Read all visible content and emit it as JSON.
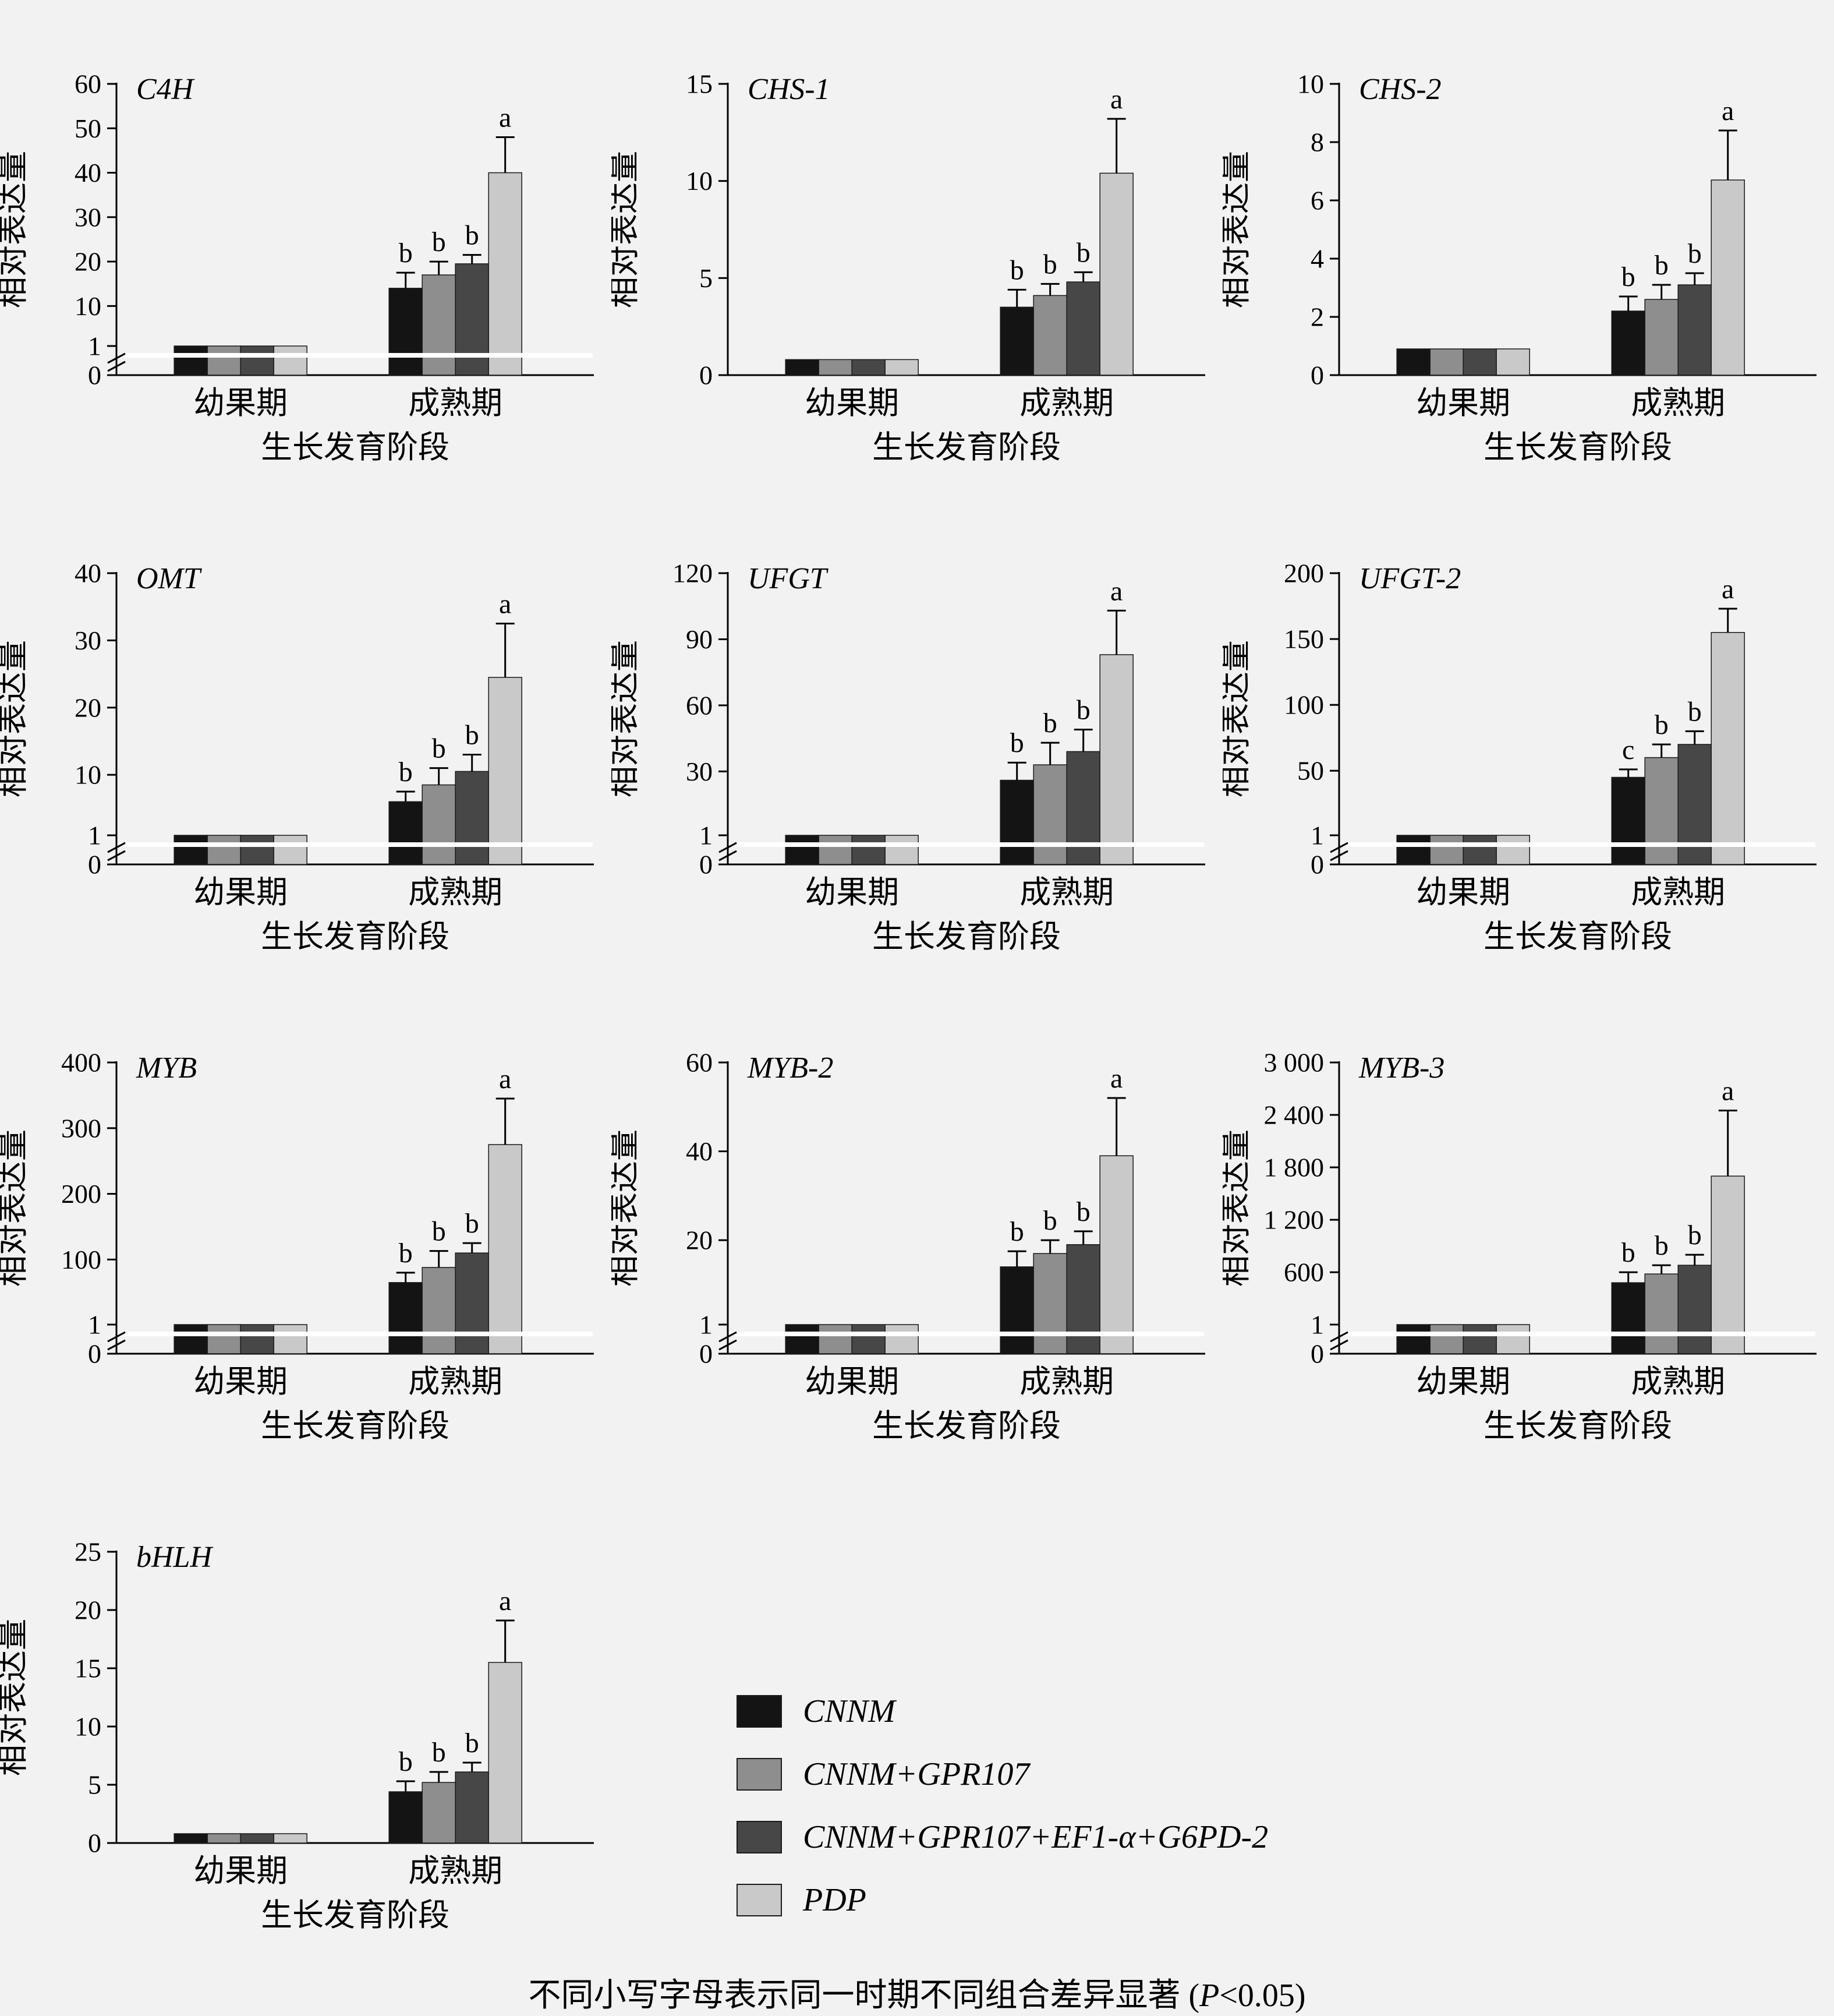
{
  "figure": {
    "background": "#f2f2f2"
  },
  "legend": {
    "items": [
      {
        "label": "CNNM",
        "color": "#141414"
      },
      {
        "label": "CNNM+GPR107",
        "color": "#8e8e8e"
      },
      {
        "label": "CNNM+GPR107+EF1-α+G6PD-2",
        "color": "#474747"
      },
      {
        "label": "PDP",
        "color": "#c9c9c9"
      }
    ]
  },
  "caption": {
    "text": "不同小写字母表示同一时期不同组合差异显著 (",
    "p": "P",
    "suffix": "<0.05)"
  },
  "chart_data": {
    "type": "bar",
    "common": {
      "ylabel": "相对表达量",
      "xlabel": "生长发育阶段",
      "groups": [
        "幼果期",
        "成熟期"
      ],
      "series": [
        "CNNM",
        "CNNM+GPR107",
        "CNNM+GPR107+EF1-α+G6PD-2",
        "PDP"
      ]
    },
    "charts": [
      {
        "gene": "C4H",
        "ymax": 60,
        "axis_break": true,
        "ticks": [
          {
            "v": 0,
            "l": "0"
          },
          {
            "v": 1,
            "l": "1"
          },
          {
            "v": 10,
            "l": "10"
          },
          {
            "v": 20,
            "l": "20"
          },
          {
            "v": 30,
            "l": "30"
          },
          {
            "v": 40,
            "l": "40"
          },
          {
            "v": 50,
            "l": "50"
          },
          {
            "v": 60,
            "l": "60"
          }
        ],
        "groups": [
          {
            "label": "幼果期",
            "values": [
              1,
              1,
              1,
              1
            ],
            "errors": [
              0,
              0,
              0,
              0
            ],
            "letters": [
              "",
              "",
              "",
              ""
            ]
          },
          {
            "label": "成熟期",
            "values": [
              14,
              17,
              19.5,
              40
            ],
            "errors": [
              3.5,
              3,
              2,
              8
            ],
            "letters": [
              "b",
              "b",
              "b",
              "a"
            ]
          }
        ]
      },
      {
        "gene": "CHS-1",
        "ymax": 15,
        "axis_break": false,
        "ticks": [
          {
            "v": 0,
            "l": "0"
          },
          {
            "v": 5,
            "l": "5"
          },
          {
            "v": 10,
            "l": "10"
          },
          {
            "v": 15,
            "l": "15"
          }
        ],
        "groups": [
          {
            "label": "幼果期",
            "values": [
              0.8,
              0.8,
              0.8,
              0.8
            ],
            "errors": [
              0,
              0,
              0,
              0
            ],
            "letters": [
              "",
              "",
              "",
              ""
            ]
          },
          {
            "label": "成熟期",
            "values": [
              3.5,
              4.1,
              4.8,
              10.4
            ],
            "errors": [
              0.9,
              0.6,
              0.5,
              2.8
            ],
            "letters": [
              "b",
              "b",
              "b",
              "a"
            ]
          }
        ]
      },
      {
        "gene": "CHS-2",
        "ymax": 10,
        "axis_break": false,
        "ticks": [
          {
            "v": 0,
            "l": "0"
          },
          {
            "v": 2,
            "l": "2"
          },
          {
            "v": 4,
            "l": "4"
          },
          {
            "v": 6,
            "l": "6"
          },
          {
            "v": 8,
            "l": "8"
          },
          {
            "v": 10,
            "l": "10"
          }
        ],
        "groups": [
          {
            "label": "幼果期",
            "values": [
              0.9,
              0.9,
              0.9,
              0.9
            ],
            "errors": [
              0,
              0,
              0,
              0
            ],
            "letters": [
              "",
              "",
              "",
              ""
            ]
          },
          {
            "label": "成熟期",
            "values": [
              2.2,
              2.6,
              3.1,
              6.7
            ],
            "errors": [
              0.5,
              0.5,
              0.4,
              1.7
            ],
            "letters": [
              "b",
              "b",
              "b",
              "a"
            ]
          }
        ]
      },
      {
        "gene": "OMT",
        "ymax": 40,
        "axis_break": true,
        "ticks": [
          {
            "v": 0,
            "l": "0"
          },
          {
            "v": 1,
            "l": "1"
          },
          {
            "v": 10,
            "l": "10"
          },
          {
            "v": 20,
            "l": "20"
          },
          {
            "v": 30,
            "l": "30"
          },
          {
            "v": 40,
            "l": "40"
          }
        ],
        "groups": [
          {
            "label": "幼果期",
            "values": [
              1,
              1,
              1,
              1
            ],
            "errors": [
              0,
              0,
              0,
              0
            ],
            "letters": [
              "",
              "",
              "",
              ""
            ]
          },
          {
            "label": "成熟期",
            "values": [
              6,
              8.5,
              10.5,
              24.5
            ],
            "errors": [
              1.5,
              2.5,
              2.5,
              8
            ],
            "letters": [
              "b",
              "b",
              "b",
              "a"
            ]
          }
        ]
      },
      {
        "gene": "UFGT",
        "ymax": 120,
        "axis_break": true,
        "ticks": [
          {
            "v": 0,
            "l": "0"
          },
          {
            "v": 1,
            "l": "1"
          },
          {
            "v": 30,
            "l": "30"
          },
          {
            "v": 60,
            "l": "60"
          },
          {
            "v": 90,
            "l": "90"
          },
          {
            "v": 120,
            "l": "120"
          }
        ],
        "groups": [
          {
            "label": "幼果期",
            "values": [
              1,
              1,
              1,
              1
            ],
            "errors": [
              0,
              0,
              0,
              0
            ],
            "letters": [
              "",
              "",
              "",
              ""
            ]
          },
          {
            "label": "成熟期",
            "values": [
              26,
              33,
              39,
              83
            ],
            "errors": [
              8,
              10,
              10,
              20
            ],
            "letters": [
              "b",
              "b",
              "b",
              "a"
            ]
          }
        ]
      },
      {
        "gene": "UFGT-2",
        "ymax": 200,
        "axis_break": true,
        "ticks": [
          {
            "v": 0,
            "l": "0"
          },
          {
            "v": 1,
            "l": "1"
          },
          {
            "v": 50,
            "l": "50"
          },
          {
            "v": 100,
            "l": "100"
          },
          {
            "v": 150,
            "l": "150"
          },
          {
            "v": 200,
            "l": "200"
          }
        ],
        "groups": [
          {
            "label": "幼果期",
            "values": [
              1,
              1,
              1,
              1
            ],
            "errors": [
              0,
              0,
              0,
              0
            ],
            "letters": [
              "",
              "",
              "",
              ""
            ]
          },
          {
            "label": "成熟期",
            "values": [
              45,
              60,
              70,
              155
            ],
            "errors": [
              6,
              10,
              10,
              18
            ],
            "letters": [
              "c",
              "b",
              "b",
              "a"
            ]
          }
        ]
      },
      {
        "gene": "MYB",
        "ymax": 400,
        "axis_break": true,
        "ticks": [
          {
            "v": 0,
            "l": "0"
          },
          {
            "v": 1,
            "l": "1"
          },
          {
            "v": 100,
            "l": "100"
          },
          {
            "v": 200,
            "l": "200"
          },
          {
            "v": 300,
            "l": "300"
          },
          {
            "v": 400,
            "l": "400"
          }
        ],
        "groups": [
          {
            "label": "幼果期",
            "values": [
              1,
              1,
              1,
              1
            ],
            "errors": [
              0,
              0,
              0,
              0
            ],
            "letters": [
              "",
              "",
              "",
              ""
            ]
          },
          {
            "label": "成熟期",
            "values": [
              65,
              88,
              110,
              275
            ],
            "errors": [
              15,
              25,
              15,
              70
            ],
            "letters": [
              "b",
              "b",
              "b",
              "a"
            ]
          }
        ]
      },
      {
        "gene": "MYB-2",
        "ymax": 60,
        "axis_break": true,
        "ticks": [
          {
            "v": 0,
            "l": "0"
          },
          {
            "v": 1,
            "l": "1"
          },
          {
            "v": 20,
            "l": "20"
          },
          {
            "v": 40,
            "l": "40"
          },
          {
            "v": 60,
            "l": "60"
          }
        ],
        "groups": [
          {
            "label": "幼果期",
            "values": [
              1,
              1,
              1,
              1
            ],
            "errors": [
              0,
              0,
              0,
              0
            ],
            "letters": [
              "",
              "",
              "",
              ""
            ]
          },
          {
            "label": "成熟期",
            "values": [
              14,
              17,
              19,
              39
            ],
            "errors": [
              3.5,
              3,
              3,
              13
            ],
            "letters": [
              "b",
              "b",
              "b",
              "a"
            ]
          }
        ]
      },
      {
        "gene": "MYB-3",
        "ymax": 3000,
        "axis_break": true,
        "ticks": [
          {
            "v": 0,
            "l": "0"
          },
          {
            "v": 1,
            "l": "1"
          },
          {
            "v": 600,
            "l": "600"
          },
          {
            "v": 1200,
            "l": "1 200"
          },
          {
            "v": 1800,
            "l": "1 800"
          },
          {
            "v": 2400,
            "l": "2 400"
          },
          {
            "v": 3000,
            "l": "3 000"
          }
        ],
        "groups": [
          {
            "label": "幼果期",
            "values": [
              1,
              1,
              1,
              1
            ],
            "errors": [
              0,
              0,
              0,
              0
            ],
            "letters": [
              "",
              "",
              "",
              ""
            ]
          },
          {
            "label": "成熟期",
            "values": [
              480,
              580,
              680,
              1700
            ],
            "errors": [
              120,
              100,
              120,
              750
            ],
            "letters": [
              "b",
              "b",
              "b",
              "a"
            ]
          }
        ]
      },
      {
        "gene": "bHLH",
        "ymax": 25,
        "axis_break": false,
        "ticks": [
          {
            "v": 0,
            "l": "0"
          },
          {
            "v": 5,
            "l": "5"
          },
          {
            "v": 10,
            "l": "10"
          },
          {
            "v": 15,
            "l": "15"
          },
          {
            "v": 20,
            "l": "20"
          },
          {
            "v": 25,
            "l": "25"
          }
        ],
        "groups": [
          {
            "label": "幼果期",
            "values": [
              0.8,
              0.8,
              0.8,
              0.8
            ],
            "errors": [
              0,
              0,
              0,
              0
            ],
            "letters": [
              "",
              "",
              "",
              ""
            ]
          },
          {
            "label": "成熟期",
            "values": [
              4.4,
              5.2,
              6.1,
              15.5
            ],
            "errors": [
              0.9,
              0.9,
              0.8,
              3.6
            ],
            "letters": [
              "b",
              "b",
              "b",
              "a"
            ]
          }
        ]
      }
    ]
  }
}
